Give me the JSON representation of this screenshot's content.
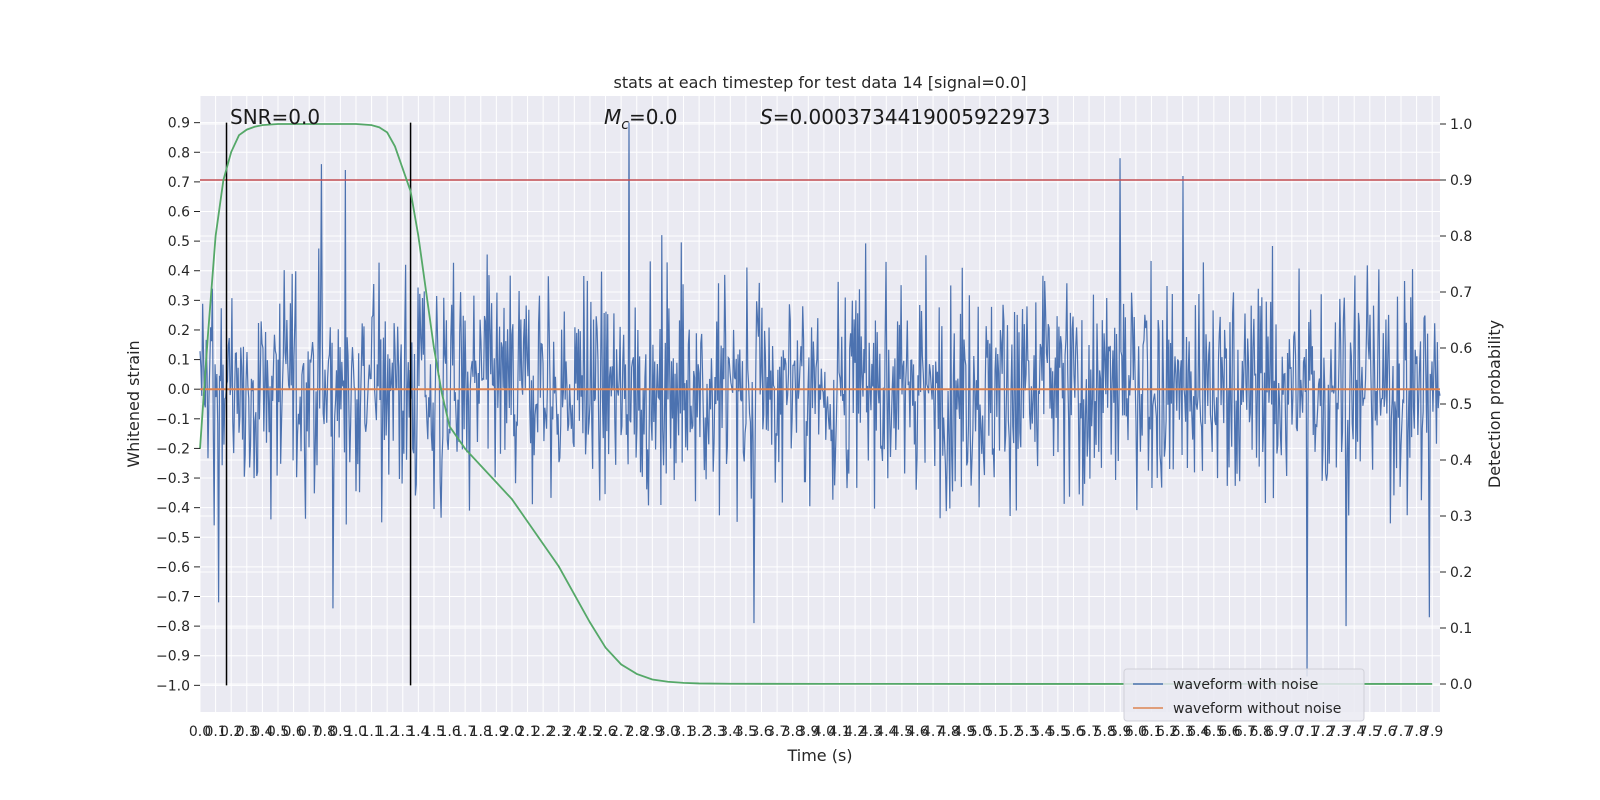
{
  "chart_data": {
    "type": "line",
    "title": "stats at each timestep for test data 14 [signal=0.0]",
    "xlabel": "Time (s)",
    "ylabel_left": "Whitened strain",
    "ylabel_right": "Detection probability",
    "xlim": [
      0.0,
      7.95
    ],
    "ylim_left": [
      -1.09,
      0.99
    ],
    "ylim_right": [
      -0.05,
      1.05
    ],
    "grid": true,
    "x_ticks": [
      "0.0",
      "0.1",
      "0.2",
      "0.3",
      "0.4",
      "0.5",
      "0.6",
      "0.7",
      "0.8",
      "0.9",
      "1.0",
      "1.1",
      "1.2",
      "1.3",
      "1.4",
      "1.5",
      "1.6",
      "1.7",
      "1.8",
      "1.9",
      "2.0",
      "2.1",
      "2.2",
      "2.3",
      "2.4",
      "2.5",
      "2.6",
      "2.7",
      "2.8",
      "2.9",
      "3.0",
      "3.1",
      "3.2",
      "3.3",
      "3.4",
      "3.5",
      "3.6",
      "3.7",
      "3.8",
      "3.9",
      "4.0",
      "4.1",
      "4.2",
      "4.3",
      "4.4",
      "4.5",
      "4.6",
      "4.7",
      "4.8",
      "4.9",
      "5.0",
      "5.1",
      "5.2",
      "5.3",
      "5.4",
      "5.5",
      "5.6",
      "5.7",
      "5.8",
      "5.9",
      "6.0",
      "6.1",
      "6.2",
      "6.3",
      "6.4",
      "6.5",
      "6.6",
      "6.7",
      "6.8",
      "6.9",
      "7.0",
      "7.1",
      "7.2",
      "7.3",
      "7.4",
      "7.5",
      "7.6",
      "7.7",
      "7.8",
      "7.9"
    ],
    "y_ticks_left": [
      "0.9",
      "0.8",
      "0.7",
      "0.6",
      "0.5",
      "0.4",
      "0.3",
      "0.2",
      "0.1",
      "0.0",
      "−0.1",
      "−0.2",
      "−0.3",
      "−0.4",
      "−0.5",
      "−0.6",
      "−0.7",
      "−0.8",
      "−0.9",
      "−1.0"
    ],
    "y_ticks_right": [
      "1.0",
      "0.9",
      "0.8",
      "0.7",
      "0.6",
      "0.5",
      "0.4",
      "0.3",
      "0.2",
      "0.1",
      "0.0"
    ],
    "annotations": {
      "snr": "SNR=0.0",
      "mc_symbol": "M",
      "mc_sub": "c",
      "mc_value": "=0.0",
      "s_symbol": "S",
      "s_value": "=0.0003734419005922973"
    },
    "vertical_markers": [
      0.17,
      1.35
    ],
    "threshold": 0.9,
    "series": [
      {
        "name": "waveform with noise",
        "color": "#4c72b0",
        "envelope_upper": 0.42,
        "envelope_lower": -0.38,
        "noise_std": 0.19,
        "spikes": [
          [
            0.12,
            -0.72
          ],
          [
            0.78,
            0.76
          ],
          [
            0.85,
            -0.74
          ],
          [
            0.93,
            0.74
          ],
          [
            1.32,
            0.42
          ],
          [
            2.75,
            0.9
          ],
          [
            3.55,
            -0.79
          ],
          [
            5.9,
            0.78
          ],
          [
            6.3,
            0.72
          ],
          [
            7.1,
            -0.97
          ],
          [
            7.35,
            -0.8
          ],
          [
            7.88,
            -0.77
          ]
        ]
      },
      {
        "name": "waveform without noise",
        "color": "#dd8452",
        "values": [
          0.0,
          0.0
        ]
      },
      {
        "name": "Detection probability",
        "color": "#55a868",
        "x": [
          0.0,
          0.05,
          0.1,
          0.15,
          0.2,
          0.25,
          0.3,
          0.35,
          0.4,
          0.5,
          0.6,
          0.7,
          0.8,
          0.9,
          1.0,
          1.1,
          1.15,
          1.2,
          1.25,
          1.3,
          1.35,
          1.4,
          1.45,
          1.5,
          1.55,
          1.6,
          1.7,
          1.8,
          1.9,
          2.0,
          2.1,
          2.2,
          2.3,
          2.4,
          2.5,
          2.6,
          2.7,
          2.8,
          2.9,
          3.0,
          3.1,
          3.2,
          3.4,
          3.6,
          4.0,
          5.0,
          6.0,
          7.0,
          7.9
        ],
        "y": [
          0.42,
          0.62,
          0.8,
          0.9,
          0.95,
          0.98,
          0.99,
          0.995,
          0.998,
          1.0,
          1.0,
          1.0,
          1.0,
          1.0,
          1.0,
          0.998,
          0.994,
          0.985,
          0.96,
          0.92,
          0.88,
          0.8,
          0.7,
          0.6,
          0.52,
          0.46,
          0.42,
          0.39,
          0.36,
          0.33,
          0.29,
          0.25,
          0.21,
          0.16,
          0.11,
          0.065,
          0.035,
          0.018,
          0.008,
          0.004,
          0.002,
          0.001,
          0.0005,
          0.0003,
          0.0002,
          0.0001,
          0.0001,
          0.0001,
          0.0001
        ]
      }
    ],
    "legend": {
      "placement": "lower-right",
      "entries": [
        "waveform with noise",
        "waveform without noise"
      ]
    }
  }
}
